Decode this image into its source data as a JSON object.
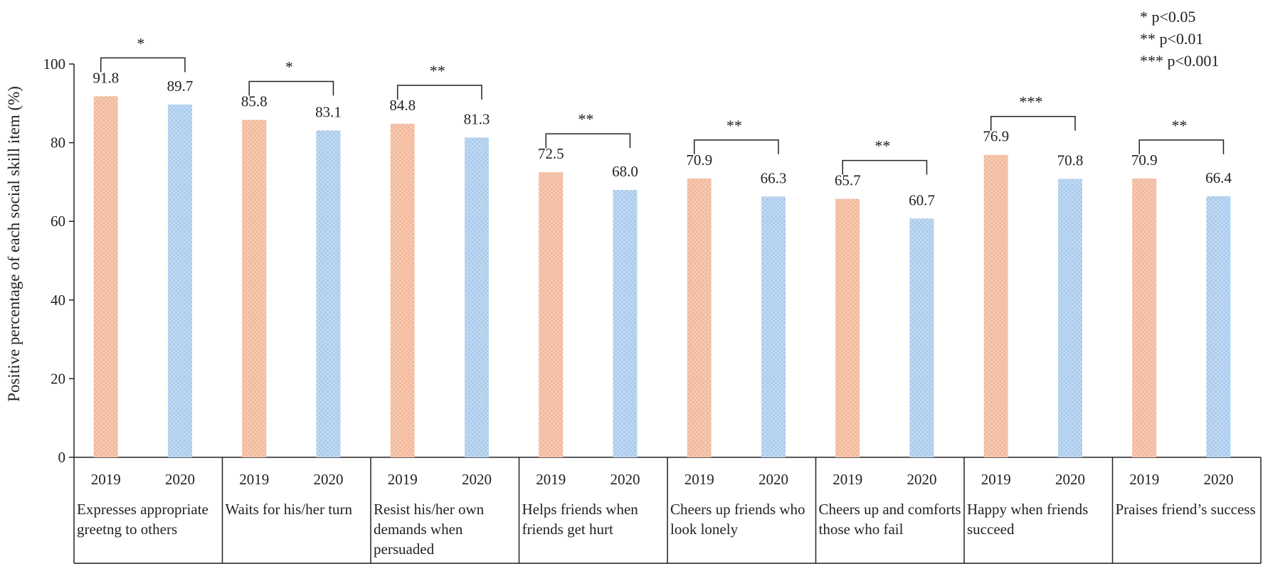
{
  "chart_data": {
    "type": "bar",
    "ylabel": "Positive percentage of each social skill item (%)",
    "ylim": [
      0,
      100
    ],
    "yticks": [
      0,
      20,
      40,
      60,
      80,
      100
    ],
    "grid": false,
    "series_labels": [
      "2019",
      "2020"
    ],
    "colors": {
      "2019": "#f7c6ad",
      "2020": "#bcd7f2",
      "dot_2019": "#e0a080",
      "dot_2020": "#8cb4dc"
    },
    "groups": [
      {
        "label": "Expresses appropriate greetng to others",
        "values": [
          91.8,
          89.7
        ],
        "value_labels": [
          "91.8",
          "89.7"
        ],
        "sig": "*"
      },
      {
        "label": "Waits for his/her turn",
        "values": [
          85.8,
          83.1
        ],
        "value_labels": [
          "85.8",
          "83.1"
        ],
        "sig": "*"
      },
      {
        "label": "Resist his/her own demands when persuaded",
        "values": [
          84.8,
          81.3
        ],
        "value_labels": [
          "84.8",
          "81.3"
        ],
        "sig": "**"
      },
      {
        "label": "Helps friends when friends get hurt",
        "values": [
          72.5,
          68.0
        ],
        "value_labels": [
          "72.5",
          "68.0"
        ],
        "sig": "**"
      },
      {
        "label": "Cheers up friends who look lonely",
        "values": [
          70.9,
          66.3
        ],
        "value_labels": [
          "70.9",
          "66.3"
        ],
        "sig": "**"
      },
      {
        "label": "Cheers up and comforts those who fail",
        "values": [
          65.7,
          60.7
        ],
        "value_labels": [
          "65.7",
          "60.7"
        ],
        "sig": "**"
      },
      {
        "label": "Happy when friends succeed",
        "values": [
          76.9,
          70.8
        ],
        "value_labels": [
          "76.9",
          "70.8"
        ],
        "sig": "***"
      },
      {
        "label": "Praises friend’s success",
        "values": [
          70.9,
          66.4
        ],
        "value_labels": [
          "70.9",
          "66.4"
        ],
        "sig": "**"
      }
    ],
    "legend_position": "top-right",
    "significance_legend": [
      "* p<0.05",
      "** p<0.01",
      "*** p<0.001"
    ]
  }
}
